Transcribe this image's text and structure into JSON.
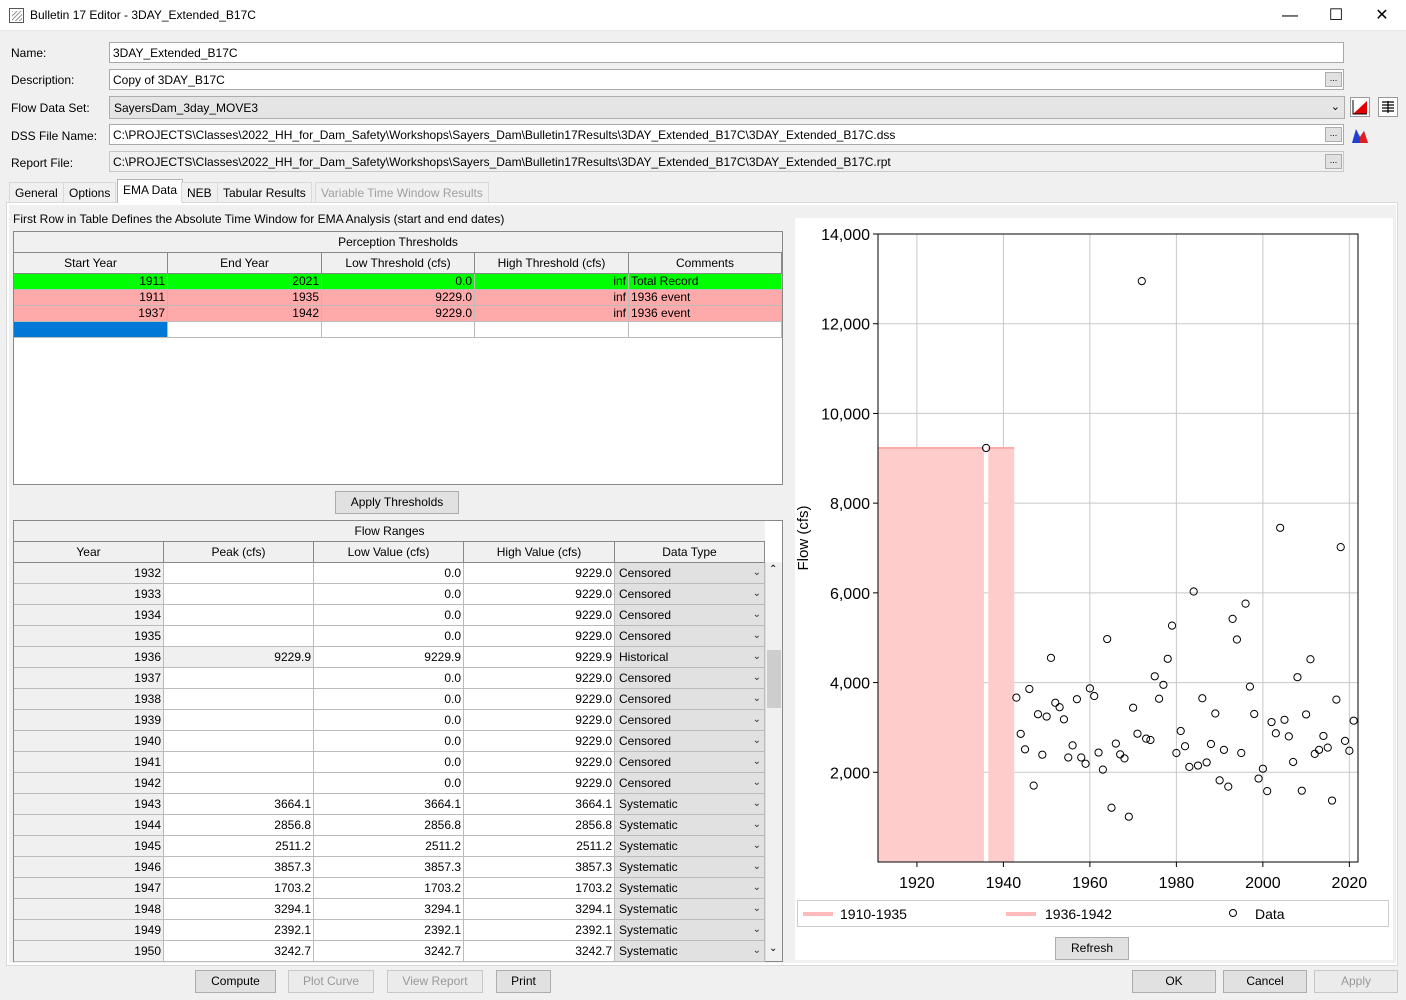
{
  "window": {
    "title": "Bulletin 17 Editor - 3DAY_Extended_B17C",
    "min": "—",
    "max": "☐",
    "close": "✕"
  },
  "form": {
    "name_label": "Name:",
    "name_value": "3DAY_Extended_B17C",
    "description_label": "Description:",
    "description_value": "Copy of 3DAY_B17C",
    "flow_label": "Flow Data Set:",
    "flow_value": "SayersDam_3day_MOVE3",
    "dss_label": "DSS File Name:",
    "dss_value": "C:\\PROJECTS\\Classes\\2022_HH_for_Dam_Safety\\Workshops\\Sayers_Dam\\Bulletin17Results\\3DAY_Extended_B17C\\3DAY_Extended_B17C.dss",
    "report_label": "Report File:",
    "report_value": "C:\\PROJECTS\\Classes\\2022_HH_for_Dam_Safety\\Workshops\\Sayers_Dam\\Bulletin17Results\\3DAY_Extended_B17C\\3DAY_Extended_B17C.rpt",
    "browse": "..."
  },
  "tabs": [
    "General",
    "Options",
    "EMA Data",
    "NEB",
    "Tabular Results",
    "Variable Time Window Results"
  ],
  "ema_note": "First Row in Table Defines the Absolute Time Window for EMA Analysis (start and end dates)",
  "perception": {
    "title": "Perception Thresholds",
    "headers": [
      "Start Year",
      "End Year",
      "Low Threshold (cfs)",
      "High Threshold (cfs)",
      "Comments"
    ],
    "rows": [
      [
        "1911",
        "2021",
        "0.0",
        "inf",
        "Total Record"
      ],
      [
        "1911",
        "1935",
        "9229.0",
        "inf",
        "1936 event"
      ],
      [
        "1937",
        "1942",
        "9229.0",
        "inf",
        "1936 event"
      ]
    ],
    "row_colors": [
      "#00ff00",
      "#ffaaaa",
      "#ffaaaa"
    ]
  },
  "apply_thresholds": "Apply Thresholds",
  "flow_ranges": {
    "title": "Flow Ranges",
    "headers": [
      "Year",
      "Peak (cfs)",
      "Low Value (cfs)",
      "High Value (cfs)",
      "Data Type"
    ],
    "rows": [
      [
        "1932",
        "",
        "0.0",
        "9229.0",
        "Censored"
      ],
      [
        "1933",
        "",
        "0.0",
        "9229.0",
        "Censored"
      ],
      [
        "1934",
        "",
        "0.0",
        "9229.0",
        "Censored"
      ],
      [
        "1935",
        "",
        "0.0",
        "9229.0",
        "Censored"
      ],
      [
        "1936",
        "9229.9",
        "9229.9",
        "9229.9",
        "Historical"
      ],
      [
        "1937",
        "",
        "0.0",
        "9229.0",
        "Censored"
      ],
      [
        "1938",
        "",
        "0.0",
        "9229.0",
        "Censored"
      ],
      [
        "1939",
        "",
        "0.0",
        "9229.0",
        "Censored"
      ],
      [
        "1940",
        "",
        "0.0",
        "9229.0",
        "Censored"
      ],
      [
        "1941",
        "",
        "0.0",
        "9229.0",
        "Censored"
      ],
      [
        "1942",
        "",
        "0.0",
        "9229.0",
        "Censored"
      ],
      [
        "1943",
        "3664.1",
        "3664.1",
        "3664.1",
        "Systematic"
      ],
      [
        "1944",
        "2856.8",
        "2856.8",
        "2856.8",
        "Systematic"
      ],
      [
        "1945",
        "2511.2",
        "2511.2",
        "2511.2",
        "Systematic"
      ],
      [
        "1946",
        "3857.3",
        "3857.3",
        "3857.3",
        "Systematic"
      ],
      [
        "1947",
        "1703.2",
        "1703.2",
        "1703.2",
        "Systematic"
      ],
      [
        "1948",
        "3294.1",
        "3294.1",
        "3294.1",
        "Systematic"
      ],
      [
        "1949",
        "2392.1",
        "2392.1",
        "2392.1",
        "Systematic"
      ],
      [
        "1950",
        "3242.7",
        "3242.7",
        "3242.7",
        "Systematic"
      ]
    ]
  },
  "buttons": {
    "compute": "Compute",
    "plot_curve": "Plot Curve",
    "view_report": "View Report",
    "print": "Print",
    "ok": "OK",
    "cancel": "Cancel",
    "apply": "Apply",
    "refresh": "Refresh"
  },
  "chart_data": {
    "type": "scatter",
    "ylabel": "Flow (cfs)",
    "xlabel": "",
    "xlim": [
      1911,
      2022
    ],
    "ylim": [
      0,
      14000
    ],
    "xticks": [
      1920,
      1940,
      1960,
      1980,
      2000,
      2020
    ],
    "yticks": [
      2000,
      4000,
      6000,
      8000,
      10000,
      12000,
      14000
    ],
    "ytick_labels": [
      "2,000",
      "4,000",
      "6,000",
      "8,000",
      "10,000",
      "12,000",
      "14,000"
    ],
    "grid": true,
    "legend_position": "bottom",
    "bands": [
      {
        "name": "1910-1935",
        "x0": 1911,
        "x1": 1935.5,
        "y0": 0,
        "y1": 9229,
        "color": "#ffcccc"
      },
      {
        "name": "1936-1942",
        "x0": 1936.5,
        "x1": 1942.5,
        "y0": 0,
        "y1": 9229,
        "color": "#ffcccc"
      }
    ],
    "series": [
      {
        "name": "Data",
        "marker": "open-circle",
        "x": [
          1936,
          1943,
          1944,
          1945,
          1946,
          1947,
          1948,
          1949,
          1950,
          1951,
          1952,
          1953,
          1954,
          1955,
          1956,
          1957,
          1958,
          1959,
          1960,
          1961,
          1962,
          1963,
          1964,
          1965,
          1966,
          1967,
          1968,
          1969,
          1970,
          1971,
          1972,
          1973,
          1974,
          1975,
          1976,
          1977,
          1978,
          1979,
          1980,
          1981,
          1982,
          1983,
          1984,
          1985,
          1986,
          1987,
          1988,
          1989,
          1990,
          1991,
          1992,
          1993,
          1994,
          1995,
          1996,
          1997,
          1998,
          1999,
          2000,
          2001,
          2002,
          2003,
          2004,
          2005,
          2006,
          2007,
          2008,
          2009,
          2010,
          2011,
          2012,
          2013,
          2014,
          2015,
          2016,
          2017,
          2018,
          2019,
          2020,
          2021
        ],
        "y": [
          9229.9,
          3664.1,
          2856.8,
          2511.2,
          3857.3,
          1703.2,
          3294.1,
          2392.1,
          3242.7,
          4550,
          3550,
          3450,
          3180,
          2330,
          2600,
          3630,
          2330,
          2190,
          3870,
          3700,
          2440,
          2060,
          4970,
          1210,
          2640,
          2400,
          2310,
          1010,
          3440,
          2860,
          12950,
          2750,
          2720,
          4140,
          3640,
          3950,
          4530,
          5270,
          2430,
          2920,
          2580,
          2120,
          6030,
          2150,
          3650,
          2220,
          2630,
          3310,
          1820,
          2500,
          1680,
          5420,
          4960,
          2430,
          5760,
          3910,
          3300,
          1860,
          2080,
          1580,
          3120,
          2870,
          7450,
          3170,
          2800,
          2230,
          4120,
          1590,
          3290,
          4520,
          2410,
          2500,
          2810,
          2550,
          1370,
          3620,
          7020,
          2700,
          2480,
          3150
        ]
      }
    ],
    "legend": [
      "1910-1935",
      "1936-1942",
      "Data"
    ]
  }
}
